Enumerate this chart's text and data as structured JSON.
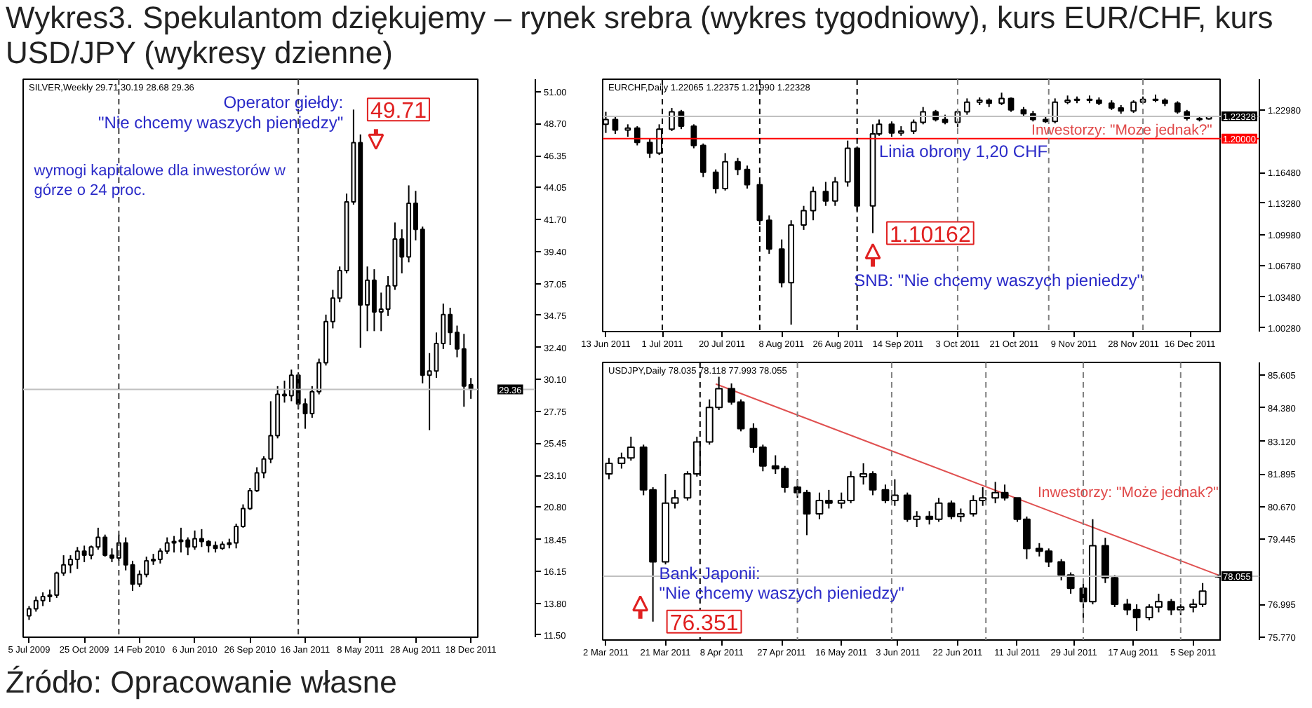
{
  "chart_data": [
    {
      "type": "candlestick",
      "title": "Wykres3. Spekulantom dziękujemy – rynek srebra (wykres tygodniowy), kurs EUR/CHF, kurs USD/JPY (wykresy dzienne)",
      "subtitle": "SILVER,Weekly  29.71 30.19 28.68 29.36",
      "color": "#000000",
      "x": [
        "2009-07-05",
        "2009-07-19",
        "2009-08-02",
        "2009-08-16",
        "2009-08-30",
        "2009-09-13",
        "2009-09-27",
        "2009-10-11",
        "2009-10-25",
        "2009-11-08",
        "2009-11-22",
        "2009-12-06",
        "2009-12-20",
        "2010-01-03",
        "2010-01-17",
        "2010-01-31",
        "2010-02-14",
        "2010-02-28",
        "2010-03-14",
        "2010-03-28",
        "2010-04-11",
        "2010-04-25",
        "2010-05-09",
        "2010-05-23",
        "2010-06-06",
        "2010-06-20",
        "2010-07-04",
        "2010-07-18",
        "2010-08-01",
        "2010-08-15",
        "2010-08-29",
        "2010-09-12",
        "2010-09-26",
        "2010-10-10",
        "2010-10-24",
        "2010-11-07",
        "2010-11-21",
        "2010-12-05",
        "2010-12-19",
        "2011-01-02",
        "2011-01-16",
        "2011-01-30",
        "2011-02-13",
        "2011-02-27",
        "2011-03-13",
        "2011-03-27",
        "2011-04-10",
        "2011-04-24",
        "2011-05-08",
        "2011-05-22",
        "2011-06-05",
        "2011-06-19",
        "2011-07-03",
        "2011-07-17",
        "2011-07-31",
        "2011-08-14",
        "2011-08-28",
        "2011-09-11",
        "2011-09-25",
        "2011-10-09",
        "2011-10-23",
        "2011-11-06",
        "2011-11-20",
        "2011-12-04",
        "2011-12-18"
      ],
      "ohlc": [
        [
          12.9,
          13.6,
          12.6,
          13.4
        ],
        [
          13.4,
          14.3,
          13.2,
          14.0
        ],
        [
          14.0,
          14.6,
          13.6,
          14.3
        ],
        [
          14.3,
          14.8,
          13.9,
          14.4
        ],
        [
          14.4,
          16.1,
          14.2,
          16.0
        ],
        [
          16.0,
          17.3,
          15.8,
          16.6
        ],
        [
          16.6,
          17.3,
          16.0,
          17.0
        ],
        [
          17.0,
          17.9,
          16.3,
          17.6
        ],
        [
          17.6,
          18.0,
          16.8,
          17.3
        ],
        [
          17.3,
          18.0,
          17.0,
          17.9
        ],
        [
          17.9,
          19.3,
          17.7,
          18.6
        ],
        [
          18.6,
          18.8,
          17.2,
          17.3
        ],
        [
          17.3,
          17.8,
          16.8,
          17.1
        ],
        [
          17.1,
          18.8,
          16.9,
          18.2
        ],
        [
          18.2,
          18.6,
          16.2,
          16.6
        ],
        [
          16.6,
          16.9,
          14.7,
          15.2
        ],
        [
          15.2,
          16.2,
          15.0,
          15.9
        ],
        [
          15.9,
          17.2,
          15.7,
          16.9
        ],
        [
          16.9,
          17.4,
          16.6,
          17.0
        ],
        [
          17.0,
          17.8,
          16.7,
          17.6
        ],
        [
          17.6,
          18.6,
          17.4,
          18.2
        ],
        [
          18.2,
          18.7,
          17.5,
          18.3
        ],
        [
          18.3,
          19.3,
          17.5,
          18.4
        ],
        [
          18.4,
          18.6,
          17.3,
          17.9
        ],
        [
          17.9,
          19.1,
          17.7,
          18.5
        ],
        [
          18.5,
          19.2,
          17.9,
          18.3
        ],
        [
          18.3,
          18.4,
          17.5,
          18.0
        ],
        [
          18.0,
          18.3,
          17.5,
          17.8
        ],
        [
          17.8,
          18.3,
          17.7,
          18.1
        ],
        [
          18.1,
          18.5,
          17.8,
          18.2
        ],
        [
          18.2,
          19.6,
          17.8,
          19.4
        ],
        [
          19.4,
          21.0,
          19.3,
          20.7
        ],
        [
          20.7,
          22.2,
          20.6,
          22.0
        ],
        [
          22.0,
          23.7,
          21.9,
          23.3
        ],
        [
          23.3,
          24.5,
          22.9,
          24.3
        ],
        [
          24.3,
          28.5,
          24.0,
          26.0
        ],
        [
          26.0,
          29.6,
          25.8,
          29.0
        ],
        [
          29.0,
          30.0,
          28.4,
          28.9
        ],
        [
          28.9,
          30.8,
          28.5,
          30.4
        ],
        [
          30.4,
          30.6,
          27.9,
          28.3
        ],
        [
          28.3,
          28.7,
          26.5,
          27.6
        ],
        [
          27.6,
          29.6,
          27.3,
          29.2
        ],
        [
          29.2,
          31.6,
          29.0,
          31.3
        ],
        [
          31.3,
          34.8,
          31.1,
          34.3
        ],
        [
          34.3,
          36.6,
          33.8,
          36.0
        ],
        [
          36.0,
          38.3,
          35.7,
          38.0
        ],
        [
          38.0,
          43.6,
          37.8,
          43.0
        ],
        [
          43.0,
          49.71,
          42.8,
          47.3
        ],
        [
          47.3,
          47.9,
          32.4,
          35.5
        ],
        [
          35.5,
          38.3,
          33.6,
          37.3
        ],
        [
          37.3,
          38.1,
          33.6,
          35.0
        ],
        [
          35.0,
          36.4,
          33.6,
          35.2
        ],
        [
          35.2,
          37.6,
          34.7,
          36.9
        ],
        [
          36.9,
          41.5,
          36.6,
          40.3
        ],
        [
          40.3,
          41.0,
          37.8,
          39.0
        ],
        [
          39.0,
          44.2,
          38.6,
          42.9
        ],
        [
          42.9,
          43.8,
          40.2,
          41.0
        ],
        [
          41.0,
          41.2,
          29.8,
          30.4
        ],
        [
          30.4,
          32.0,
          26.4,
          30.7
        ],
        [
          30.7,
          33.5,
          30.2,
          32.7
        ],
        [
          32.7,
          35.6,
          32.3,
          34.8
        ],
        [
          34.8,
          35.3,
          32.6,
          33.5
        ],
        [
          33.5,
          34.0,
          31.7,
          32.3
        ],
        [
          32.3,
          33.4,
          28.1,
          29.6
        ],
        [
          29.71,
          30.19,
          28.68,
          29.36
        ]
      ],
      "xlim": [
        "2009-06-23",
        "2012-01-01"
      ],
      "xticks": [
        {
          "value": "2009-07-05",
          "label": "5 Jul 2009"
        },
        {
          "value": "2009-10-25",
          "label": "25 Oct 2009"
        },
        {
          "value": "2010-02-14",
          "label": "14 Feb 2010"
        },
        {
          "value": "2010-06-06",
          "label": "6 Jun 2010"
        },
        {
          "value": "2010-09-26",
          "label": "26 Sep 2010"
        },
        {
          "value": "2011-01-16",
          "label": "16 Jan 2011"
        },
        {
          "value": "2011-05-08",
          "label": "8 May 2011"
        },
        {
          "value": "2011-08-28",
          "label": "28 Aug 2011"
        },
        {
          "value": "2011-12-18",
          "label": "18 Dec 2011"
        }
      ],
      "ylim": [
        11.34,
        51.92
      ],
      "yticks": [
        {
          "value": 11.5,
          "label": "11.50"
        },
        {
          "value": 13.8,
          "label": "13.80"
        },
        {
          "value": 16.15,
          "label": "16.15"
        },
        {
          "value": 18.45,
          "label": "18.45"
        },
        {
          "value": 20.8,
          "label": "20.80"
        },
        {
          "value": 23.1,
          "label": "23.10"
        },
        {
          "value": 25.45,
          "label": "25.45"
        },
        {
          "value": 27.75,
          "label": "27.75"
        },
        {
          "value": 30.1,
          "label": "30.10"
        },
        {
          "value": 32.4,
          "label": "32.40"
        },
        {
          "value": 34.75,
          "label": "34.75"
        },
        {
          "value": 37.05,
          "label": "37.05"
        },
        {
          "value": 39.4,
          "label": "39.40"
        },
        {
          "value": 41.7,
          "label": "41.70"
        },
        {
          "value": 44.05,
          "label": "44.05"
        },
        {
          "value": 46.35,
          "label": "46.35"
        },
        {
          "value": 48.7,
          "label": "48.70"
        },
        {
          "value": 51,
          "label": "51.00"
        }
      ],
      "ref_lines": [
        {
          "axis": "y",
          "value": 29.36,
          "label": "29.36",
          "color": "#c0c0c0"
        },
        {
          "axis": "x",
          "value": "2010-01-03",
          "color": "#404040",
          "line_style": "dashed"
        },
        {
          "axis": "x",
          "value": "2011-01-02",
          "color": "#404040",
          "line_style": "dashed"
        }
      ],
      "annotations": [
        "Operator giełdy:",
        "\"Nie chcemy waszych pieniedzy\"",
        {
          "text": "49.71",
          "x": "2011-04-24",
          "y": 49.71
        },
        "wymogi kapitalowe dla inwestorów w górze o 24 proc.",
        "Źródło: Opracowanie własne"
      ]
    },
    {
      "type": "candlestick",
      "subtitle": "EURCHF,Daily  1.22065 1.22375 1.21990 1.22328",
      "color": "#000000",
      "x": [
        "2011-06-13",
        "2011-06-16",
        "2011-06-20",
        "2011-06-23",
        "2011-06-27",
        "2011-06-30",
        "2011-07-04",
        "2011-07-07",
        "2011-07-11",
        "2011-07-14",
        "2011-07-18",
        "2011-07-21",
        "2011-07-25",
        "2011-07-28",
        "2011-08-01",
        "2011-08-04",
        "2011-08-08",
        "2011-08-11",
        "2011-08-15",
        "2011-08-18",
        "2011-08-22",
        "2011-08-25",
        "2011-08-29",
        "2011-09-01",
        "2011-09-06",
        "2011-09-08",
        "2011-09-12",
        "2011-09-15",
        "2011-09-19",
        "2011-09-22",
        "2011-09-26",
        "2011-09-29",
        "2011-10-03",
        "2011-10-06",
        "2011-10-10",
        "2011-10-13",
        "2011-10-17",
        "2011-10-20",
        "2011-10-24",
        "2011-10-27",
        "2011-10-31",
        "2011-11-03",
        "2011-11-07",
        "2011-11-10",
        "2011-11-14",
        "2011-11-17",
        "2011-11-21",
        "2011-11-24",
        "2011-11-28",
        "2011-12-01",
        "2011-12-05",
        "2011-12-08",
        "2011-12-12",
        "2011-12-15",
        "2011-12-19",
        "2011-12-22"
      ],
      "ohlc": [
        [
          1.215,
          1.228,
          1.206,
          1.22
        ],
        [
          1.22,
          1.223,
          1.205,
          1.209
        ],
        [
          1.209,
          1.215,
          1.202,
          1.211
        ],
        [
          1.211,
          1.213,
          1.193,
          1.196
        ],
        [
          1.196,
          1.2,
          1.18,
          1.185
        ],
        [
          1.185,
          1.215,
          1.183,
          1.21
        ],
        [
          1.21,
          1.232,
          1.208,
          1.228
        ],
        [
          1.228,
          1.23,
          1.21,
          1.213
        ],
        [
          1.213,
          1.215,
          1.19,
          1.193
        ],
        [
          1.193,
          1.195,
          1.16,
          1.165
        ],
        [
          1.165,
          1.168,
          1.143,
          1.148
        ],
        [
          1.148,
          1.185,
          1.146,
          1.176
        ],
        [
          1.176,
          1.18,
          1.162,
          1.168
        ],
        [
          1.168,
          1.172,
          1.148,
          1.152
        ],
        [
          1.152,
          1.155,
          1.11,
          1.115
        ],
        [
          1.115,
          1.12,
          1.08,
          1.085
        ],
        [
          1.085,
          1.095,
          1.045,
          1.05
        ],
        [
          1.05,
          1.115,
          1.0062,
          1.11
        ],
        [
          1.11,
          1.13,
          1.105,
          1.125
        ],
        [
          1.125,
          1.15,
          1.115,
          1.145
        ],
        [
          1.145,
          1.155,
          1.13,
          1.135
        ],
        [
          1.135,
          1.16,
          1.13,
          1.155
        ],
        [
          1.155,
          1.198,
          1.15,
          1.19
        ],
        [
          1.19,
          1.192,
          1.125,
          1.13
        ],
        [
          1.13,
          1.215,
          1.10162,
          1.205
        ],
        [
          1.205,
          1.22,
          1.203,
          1.215
        ],
        [
          1.215,
          1.218,
          1.202,
          1.206
        ],
        [
          1.206,
          1.213,
          1.203,
          1.208
        ],
        [
          1.208,
          1.22,
          1.205,
          1.217
        ],
        [
          1.217,
          1.233,
          1.215,
          1.228
        ],
        [
          1.228,
          1.23,
          1.218,
          1.22
        ],
        [
          1.22,
          1.225,
          1.215,
          1.217
        ],
        [
          1.217,
          1.23,
          1.212,
          1.228
        ],
        [
          1.228,
          1.242,
          1.225,
          1.238
        ],
        [
          1.238,
          1.243,
          1.235,
          1.24
        ],
        [
          1.24,
          1.242,
          1.233,
          1.237
        ],
        [
          1.237,
          1.248,
          1.235,
          1.242
        ],
        [
          1.242,
          1.243,
          1.228,
          1.23
        ],
        [
          1.23,
          1.233,
          1.223,
          1.226
        ],
        [
          1.226,
          1.229,
          1.218,
          1.22
        ],
        [
          1.22,
          1.224,
          1.2165,
          1.218
        ],
        [
          1.218,
          1.242,
          1.216,
          1.238
        ],
        [
          1.238,
          1.245,
          1.236,
          1.24
        ],
        [
          1.24,
          1.244,
          1.237,
          1.241
        ],
        [
          1.241,
          1.245,
          1.237,
          1.24
        ],
        [
          1.24,
          1.243,
          1.235,
          1.237
        ],
        [
          1.237,
          1.24,
          1.23,
          1.232
        ],
        [
          1.232,
          1.235,
          1.226,
          1.229
        ],
        [
          1.229,
          1.24,
          1.227,
          1.238
        ],
        [
          1.238,
          1.244,
          1.236,
          1.241
        ],
        [
          1.241,
          1.246,
          1.238,
          1.24
        ],
        [
          1.24,
          1.242,
          1.234,
          1.237
        ],
        [
          1.237,
          1.239,
          1.226,
          1.228
        ],
        [
          1.228,
          1.23,
          1.219,
          1.221
        ],
        [
          1.221,
          1.224,
          1.218,
          1.22
        ],
        [
          1.22065,
          1.22375,
          1.2199,
          1.22328
        ]
      ],
      "xlim": [
        "2011-06-12",
        "2011-12-26"
      ],
      "xticks": [
        {
          "value": "2011-06-13",
          "label": "13 Jun 2011"
        },
        {
          "value": "2011-07-01",
          "label": "1 Jul 2011"
        },
        {
          "value": "2011-07-20",
          "label": "20 Jul 2011"
        },
        {
          "value": "2011-08-08",
          "label": "8 Aug 2011"
        },
        {
          "value": "2011-08-26",
          "label": "26 Aug 2011"
        },
        {
          "value": "2011-09-14",
          "label": "14 Sep 2011"
        },
        {
          "value": "2011-10-03",
          "label": "3 Oct 2011"
        },
        {
          "value": "2011-10-21",
          "label": "21 Oct 2011"
        },
        {
          "value": "2011-11-09",
          "label": "9 Nov 2011"
        },
        {
          "value": "2011-11-28",
          "label": "28 Nov 2011"
        },
        {
          "value": "2011-12-16",
          "label": "16 Dec 2011"
        }
      ],
      "ylim": [
        0.999,
        1.262
      ],
      "yticks": [
        {
          "value": 1.0028,
          "label": "1.00280"
        },
        {
          "value": 1.0348,
          "label": "1.03480"
        },
        {
          "value": 1.0678,
          "label": "1.06780"
        },
        {
          "value": 1.0998,
          "label": "1.09980"
        },
        {
          "value": 1.1328,
          "label": "1.13280"
        },
        {
          "value": 1.1648,
          "label": "1.16480"
        },
        {
          "value": 1.2298,
          "label": "1.22980"
        }
      ],
      "ref_lines": [
        {
          "axis": "y",
          "value": 1.2,
          "label": "1.20000",
          "color": "#ff0000"
        },
        {
          "axis": "y",
          "value": 1.22328,
          "label": "1.22328",
          "color": "#c0c0c0"
        },
        {
          "axis": "x",
          "value": "2011-07-01",
          "color": "#000000",
          "line_style": "dashed"
        },
        {
          "axis": "x",
          "value": "2011-08-01",
          "color": "#000000",
          "line_style": "dashed"
        },
        {
          "axis": "x",
          "value": "2011-09-01",
          "color": "#000000",
          "line_style": "dashed"
        },
        {
          "axis": "x",
          "value": "2011-10-03",
          "color": "#808080",
          "line_style": "dashed"
        },
        {
          "axis": "x",
          "value": "2011-11-01",
          "color": "#808080",
          "line_style": "dashed"
        },
        {
          "axis": "x",
          "value": "2011-12-01",
          "color": "#808080",
          "line_style": "dashed"
        }
      ],
      "annotations": [
        {
          "text": "Linia obrony 1,20 CHF",
          "x": "2011-09-08",
          "y": 1.187
        },
        "Inwestorzy: \"Moze jednak?\"",
        {
          "text": "1.10162",
          "x": "2011-09-06",
          "y": 1.10162
        },
        {
          "text": "SNB: \"Nie chcemy waszych pieniedzy\"",
          "x": "2011-08-31",
          "y": 1.052
        }
      ]
    },
    {
      "type": "candlestick",
      "subtitle": "USDJPY,Daily  78.035 78.118 77.993 78.055",
      "color": "#000000",
      "x": [
        "2011-03-03",
        "2011-03-07",
        "2011-03-10",
        "2011-03-14",
        "2011-03-17",
        "2011-03-21",
        "2011-03-24",
        "2011-03-28",
        "2011-03-31",
        "2011-04-04",
        "2011-04-07",
        "2011-04-11",
        "2011-04-14",
        "2011-04-18",
        "2011-04-21",
        "2011-04-25",
        "2011-04-28",
        "2011-05-02",
        "2011-05-05",
        "2011-05-09",
        "2011-05-12",
        "2011-05-16",
        "2011-05-19",
        "2011-05-23",
        "2011-05-26",
        "2011-05-30",
        "2011-06-02",
        "2011-06-06",
        "2011-06-09",
        "2011-06-13",
        "2011-06-16",
        "2011-06-20",
        "2011-06-23",
        "2011-06-27",
        "2011-06-30",
        "2011-07-04",
        "2011-07-07",
        "2011-07-11",
        "2011-07-14",
        "2011-07-18",
        "2011-07-21",
        "2011-07-25",
        "2011-07-28",
        "2011-08-01",
        "2011-08-04",
        "2011-08-08",
        "2011-08-11",
        "2011-08-15",
        "2011-08-18",
        "2011-08-22",
        "2011-08-25",
        "2011-08-29",
        "2011-09-01",
        "2011-09-05",
        "2011-09-08",
        "2011-09-13"
      ],
      "ohlc": [
        [
          81.9,
          82.5,
          81.7,
          82.3
        ],
        [
          82.3,
          82.7,
          82.1,
          82.5
        ],
        [
          82.5,
          83.3,
          82.4,
          82.9
        ],
        [
          82.9,
          83.0,
          81.1,
          81.3
        ],
        [
          81.3,
          81.4,
          76.351,
          78.6
        ],
        [
          78.6,
          81.9,
          78.5,
          80.8
        ],
        [
          80.8,
          81.3,
          80.6,
          81.0
        ],
        [
          81.0,
          82.0,
          80.9,
          81.9
        ],
        [
          81.9,
          83.3,
          81.8,
          83.1
        ],
        [
          83.1,
          84.7,
          83.0,
          84.4
        ],
        [
          84.4,
          85.55,
          84.3,
          85.1
        ],
        [
          85.1,
          85.3,
          84.5,
          84.6
        ],
        [
          84.6,
          84.7,
          83.5,
          83.6
        ],
        [
          83.6,
          83.8,
          82.7,
          82.9
        ],
        [
          82.9,
          83.0,
          82.0,
          82.2
        ],
        [
          82.2,
          82.6,
          81.9,
          82.1
        ],
        [
          82.1,
          82.2,
          81.2,
          81.4
        ],
        [
          81.4,
          81.7,
          81.0,
          81.2
        ],
        [
          81.2,
          81.3,
          79.6,
          80.4
        ],
        [
          80.4,
          81.2,
          80.2,
          80.9
        ],
        [
          80.9,
          81.3,
          80.6,
          80.8
        ],
        [
          80.8,
          81.2,
          80.6,
          80.9
        ],
        [
          80.9,
          82.0,
          80.8,
          81.8
        ],
        [
          81.8,
          82.3,
          81.5,
          81.9
        ],
        [
          81.9,
          82.0,
          81.1,
          81.3
        ],
        [
          81.3,
          81.5,
          80.8,
          80.9
        ],
        [
          80.9,
          81.7,
          80.7,
          81.1
        ],
        [
          81.1,
          81.2,
          80.1,
          80.2
        ],
        [
          80.2,
          80.5,
          79.9,
          80.3
        ],
        [
          80.3,
          80.5,
          80.0,
          80.2
        ],
        [
          80.2,
          81.0,
          80.1,
          80.8
        ],
        [
          80.8,
          80.9,
          80.2,
          80.3
        ],
        [
          80.3,
          80.6,
          80.1,
          80.4
        ],
        [
          80.4,
          81.1,
          80.3,
          80.9
        ],
        [
          80.9,
          81.4,
          80.7,
          81.0
        ],
        [
          81.0,
          81.6,
          80.8,
          81.2
        ],
        [
          81.2,
          81.5,
          80.9,
          81.0
        ],
        [
          81.0,
          81.0,
          80.1,
          80.2
        ],
        [
          80.2,
          80.3,
          78.7,
          79.1
        ],
        [
          79.1,
          79.3,
          78.8,
          79.0
        ],
        [
          79.0,
          79.1,
          78.4,
          78.6
        ],
        [
          78.6,
          78.7,
          77.9,
          78.1
        ],
        [
          78.1,
          78.2,
          77.4,
          77.6
        ],
        [
          77.6,
          77.8,
          76.4,
          77.1
        ],
        [
          77.1,
          80.2,
          77.0,
          79.2
        ],
        [
          79.2,
          79.5,
          77.8,
          78.0
        ],
        [
          78.0,
          78.1,
          76.9,
          77.0
        ],
        [
          77.0,
          77.2,
          76.6,
          76.8
        ],
        [
          76.8,
          77.0,
          76.0,
          76.5
        ],
        [
          76.5,
          77.0,
          76.4,
          76.9
        ],
        [
          76.9,
          77.4,
          76.7,
          77.1
        ],
        [
          77.1,
          77.2,
          76.6,
          76.8
        ],
        [
          76.8,
          77.0,
          76.6,
          76.9
        ],
        [
          76.9,
          77.2,
          76.7,
          77.0
        ],
        [
          77.0,
          77.8,
          76.9,
          77.5
        ],
        [
          78.035,
          78.118,
          77.993,
          78.055
        ]
      ],
      "series": [
        {
          "type": "line",
          "color": "#e05050",
          "x": [
            "2011-04-06",
            "2011-09-13"
          ],
          "values": [
            85.28,
            78.1
          ]
        }
      ],
      "xlim": [
        "2011-03-01",
        "2011-09-14"
      ],
      "xticks": [
        {
          "value": "2011-03-02",
          "label": "2 Mar 2011"
        },
        {
          "value": "2011-03-21",
          "label": "21 Mar 2011"
        },
        {
          "value": "2011-04-08",
          "label": "8 Apr 2011"
        },
        {
          "value": "2011-04-27",
          "label": "27 Apr 2011"
        },
        {
          "value": "2011-05-16",
          "label": "16 May 2011"
        },
        {
          "value": "2011-06-03",
          "label": "3 Jun 2011"
        },
        {
          "value": "2011-06-22",
          "label": "22 Jun 2011"
        },
        {
          "value": "2011-07-11",
          "label": "11 Jul 2011"
        },
        {
          "value": "2011-07-29",
          "label": "29 Jul 2011"
        },
        {
          "value": "2011-08-17",
          "label": "17 Aug 2011"
        },
        {
          "value": "2011-09-05",
          "label": "5 Sep 2011"
        }
      ],
      "ylim": [
        75.66,
        86.09
      ],
      "yticks": [
        {
          "value": 75.77,
          "label": "75.770"
        },
        {
          "value": 76.995,
          "label": "76.995"
        },
        {
          "value": 79.445,
          "label": "79.445"
        },
        {
          "value": 80.67,
          "label": "80.670"
        },
        {
          "value": 81.895,
          "label": "81.895"
        },
        {
          "value": 83.12,
          "label": "83.120"
        },
        {
          "value": 84.38,
          "label": "84.380"
        },
        {
          "value": 85.605,
          "label": "85.605"
        }
      ],
      "ref_lines": [
        {
          "axis": "y",
          "value": 78.055,
          "label": "78.055",
          "color": "#c0c0c0"
        },
        {
          "axis": "x",
          "value": "2011-04-01",
          "color": "#000000",
          "line_style": "dashed"
        },
        {
          "axis": "x",
          "value": "2011-05-02",
          "color": "#808080",
          "line_style": "dashed"
        },
        {
          "axis": "x",
          "value": "2011-06-01",
          "color": "#808080",
          "line_style": "dashed"
        },
        {
          "axis": "x",
          "value": "2011-07-01",
          "color": "#808080",
          "line_style": "dashed"
        },
        {
          "axis": "x",
          "value": "2011-08-01",
          "color": "#808080",
          "line_style": "dashed"
        },
        {
          "axis": "x",
          "value": "2011-09-01",
          "color": "#808080",
          "line_style": "dashed"
        }
      ],
      "annotations": [
        "Inwestorzy: \"Może jednak?\"",
        {
          "text": "Bank Japonii:",
          "x": "2011-03-19",
          "y": 78.15
        },
        {
          "text": "\"Nie chcemy waszych pieniedzy\"",
          "x": "2011-03-19",
          "y": 77.42
        },
        {
          "text": "76.351",
          "x": "2011-03-17",
          "y": 76.351
        }
      ]
    }
  ]
}
